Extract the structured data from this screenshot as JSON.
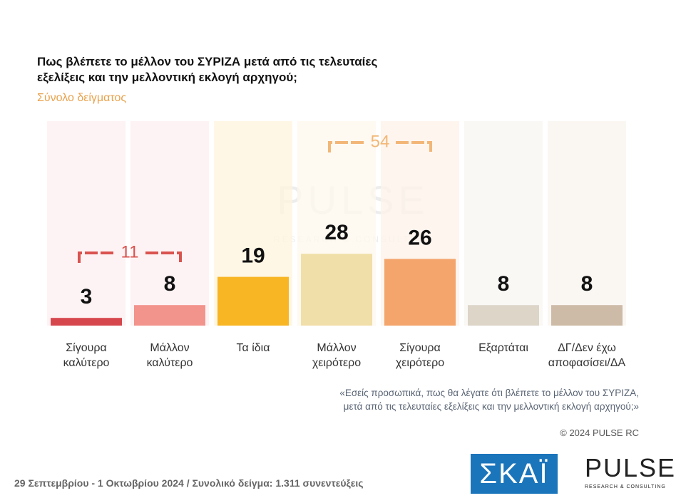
{
  "chart_data": {
    "type": "bar",
    "title": [
      "Πως βλέπετε το μέλλον του ΣΥΡΙΖΑ μετά από τις τελευταίες",
      "εξελίξεις και την μελλοντική εκλογή αρχηγού;"
    ],
    "subtitle": "Σύνολο δείγματος",
    "categories": [
      "Σίγουρα καλύτερο",
      "Μάλλον καλύτερο",
      "Τα ίδια",
      "Μάλλον χειρότερο",
      "Σίγουρα χειρότερο",
      "Εξαρτάται",
      "ΔΓ/Δεν έχω αποφασίσει/ΔΑ"
    ],
    "values": [
      3,
      8,
      19,
      28,
      26,
      8,
      8
    ],
    "colors": [
      "#d6474d",
      "#f2938c",
      "#f8b524",
      "#f0dfa8",
      "#f3a56b",
      "#dcd5c8",
      "#cdbba8"
    ],
    "brackets": [
      {
        "value": 11,
        "color": "#d9534f"
      },
      {
        "value": 54,
        "color": "#f2b777"
      }
    ],
    "watermark": [
      "PULSE",
      "RESEARCH & CONSULTING"
    ],
    "footnote": [
      "«Εσείς προσωπικά, πως θα λέγατε ότι βλέπετε το μέλλον του ΣΥΡΙΖΑ,",
      "μετά από τις τελευταίες εξελίξεις και την μελλοντική εκλογή αρχηγού;»"
    ],
    "copyright": "© 2024 PULSE RC",
    "date_line": "29 Σεπτεμβρίου - 1 Οκτωβρίου 2024  /  Συνολικό δείγμα:  1.311 συνεντεύξεις",
    "logos": [
      "ΣΚΑΪ",
      "PULSE",
      "RESEARCH & CONSULTING"
    ]
  }
}
